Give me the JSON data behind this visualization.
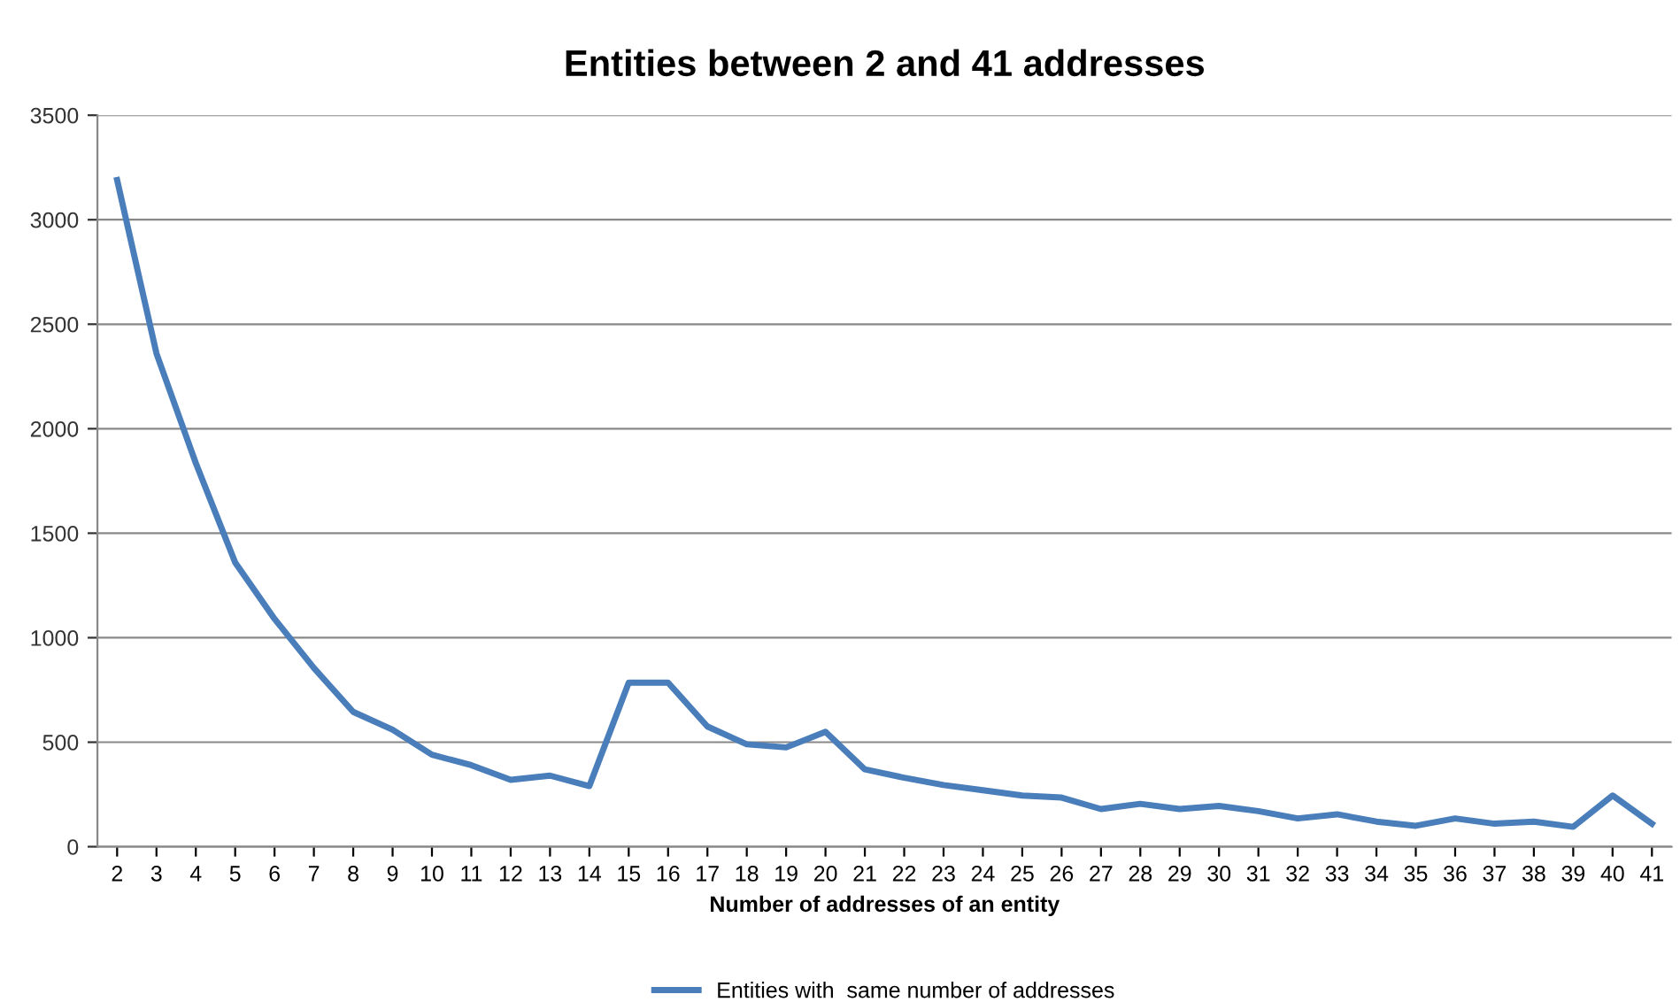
{
  "chart_data": {
    "type": "line",
    "title": "Entities between 2 and 41 addresses",
    "xlabel": "Number of addresses of an entity",
    "categories": [
      "2",
      "3",
      "4",
      "5",
      "6",
      "7",
      "8",
      "9",
      "10",
      "11",
      "12",
      "13",
      "14",
      "15",
      "16",
      "17",
      "18",
      "19",
      "20",
      "21",
      "22",
      "23",
      "24",
      "25",
      "26",
      "27",
      "28",
      "29",
      "30",
      "31",
      "32",
      "33",
      "34",
      "35",
      "36",
      "37",
      "38",
      "39",
      "40",
      "41"
    ],
    "series": [
      {
        "name": "Entities with  same number of addresses",
        "color": "#4a7ebb",
        "values": [
          3190,
          2360,
          1835,
          1360,
          1090,
          855,
          645,
          560,
          440,
          390,
          320,
          340,
          290,
          785,
          785,
          575,
          490,
          475,
          550,
          370,
          330,
          295,
          270,
          245,
          235,
          180,
          205,
          180,
          195,
          170,
          135,
          155,
          120,
          100,
          135,
          110,
          120,
          95,
          245,
          110
        ]
      }
    ],
    "ylim": [
      0,
      3500
    ],
    "yticks": [
      0,
      500,
      1000,
      1500,
      2000,
      2500,
      3000,
      3500
    ],
    "grid": "y",
    "legend": "bottom",
    "marker": "none",
    "line_style": "solid"
  }
}
